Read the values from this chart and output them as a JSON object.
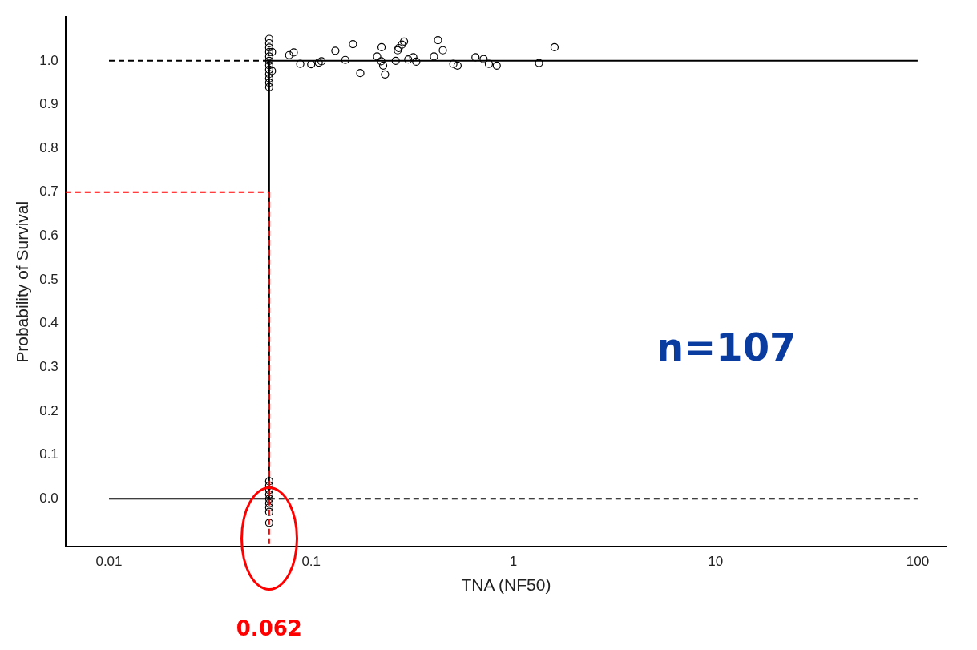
{
  "chart_data": {
    "type": "scatter",
    "xlabel": "TNA (NF50)",
    "ylabel": "Probability of Survival",
    "log": "x",
    "grid": false,
    "legend": false,
    "xlim": [
      0.0061,
      139
    ],
    "xticks": [
      0.01,
      0.1,
      1,
      10,
      100
    ],
    "ylim": [
      -0.11,
      1.1
    ],
    "yticks": [
      {
        "value": 0,
        "label": "0.0"
      },
      {
        "value": 0.1,
        "label": "0.1"
      },
      {
        "value": 0.2,
        "label": "0.2"
      },
      {
        "value": 0.3,
        "label": "0.3"
      },
      {
        "value": 0.4,
        "label": "0.4"
      },
      {
        "value": 0.5,
        "label": "0.5"
      },
      {
        "value": 0.6,
        "label": "0.6"
      },
      {
        "value": 0.7,
        "label": "0.7"
      },
      {
        "value": 0.8,
        "label": "0.8"
      },
      {
        "value": 0.9,
        "label": "0.9"
      },
      {
        "value": 1,
        "label": "1.0"
      }
    ],
    "series": [
      {
        "type": "line",
        "color": "#000000",
        "marker": "none",
        "line_style": "solid",
        "x": [
          0.01,
          0.062,
          0.062,
          100
        ],
        "values": [
          0,
          0,
          1,
          1
        ]
      },
      {
        "type": "line",
        "color": "#000000",
        "marker": "none",
        "line_style": "dashed",
        "x": [
          0.01,
          0.062
        ],
        "values": [
          1,
          1
        ]
      },
      {
        "type": "line",
        "color": "#000000",
        "marker": "none",
        "line_style": "dashed",
        "x": [
          0.062,
          100
        ],
        "values": [
          0,
          0
        ]
      },
      {
        "color": "#000000",
        "marker": "circle",
        "x": [
          0.062,
          0.062,
          0.062,
          0.062,
          0.062,
          0.062,
          0.062,
          0.062,
          0.062,
          0.062,
          0.062,
          0.062,
          0.064,
          0.064,
          0.0778,
          0.082,
          0.0883,
          0.1,
          0.109,
          0.1125,
          0.1317,
          0.1475,
          0.161,
          0.175,
          0.212,
          0.223,
          0.222,
          0.227,
          0.232,
          0.262,
          0.268,
          0.271,
          0.281,
          0.288,
          0.302,
          0.32,
          0.331,
          0.405,
          0.424,
          0.448,
          0.505,
          0.53,
          0.65,
          0.713,
          0.757,
          0.828,
          1.34,
          1.6,
          0.062,
          0.062,
          0.062,
          0.062,
          0.062,
          0.062,
          0.062,
          0.062,
          0.062
        ],
        "values": [
          1.05,
          1.04,
          1.03,
          1.02,
          1.01,
          1.0,
          0.99,
          0.98,
          0.97,
          0.96,
          0.95,
          0.94,
          0.977,
          1.02,
          1.013,
          1.019,
          0.993,
          0.992,
          0.996,
          0.999,
          1.023,
          1.002,
          1.038,
          0.972,
          1.01,
          1.031,
          0.999,
          0.989,
          0.969,
          1.0,
          1.024,
          1.029,
          1.037,
          1.044,
          1.003,
          1.008,
          0.998,
          1.01,
          1.047,
          1.024,
          0.993,
          0.989,
          1.008,
          1.004,
          0.993,
          0.989,
          0.995,
          1.031,
          0.04,
          0.03,
          0.02,
          0.01,
          0,
          -0.01,
          -0.02,
          -0.03,
          -0.055
        ]
      }
    ],
    "ref_lines": [
      {
        "axis": "x",
        "value": 0.062,
        "label": "0.062",
        "color": "#ff0000",
        "line_style": "dashed"
      },
      {
        "axis": "y",
        "value": 0.7,
        "color": "#ff0000",
        "line_style": "dashed"
      }
    ],
    "annotations": [
      "n=107"
    ]
  }
}
